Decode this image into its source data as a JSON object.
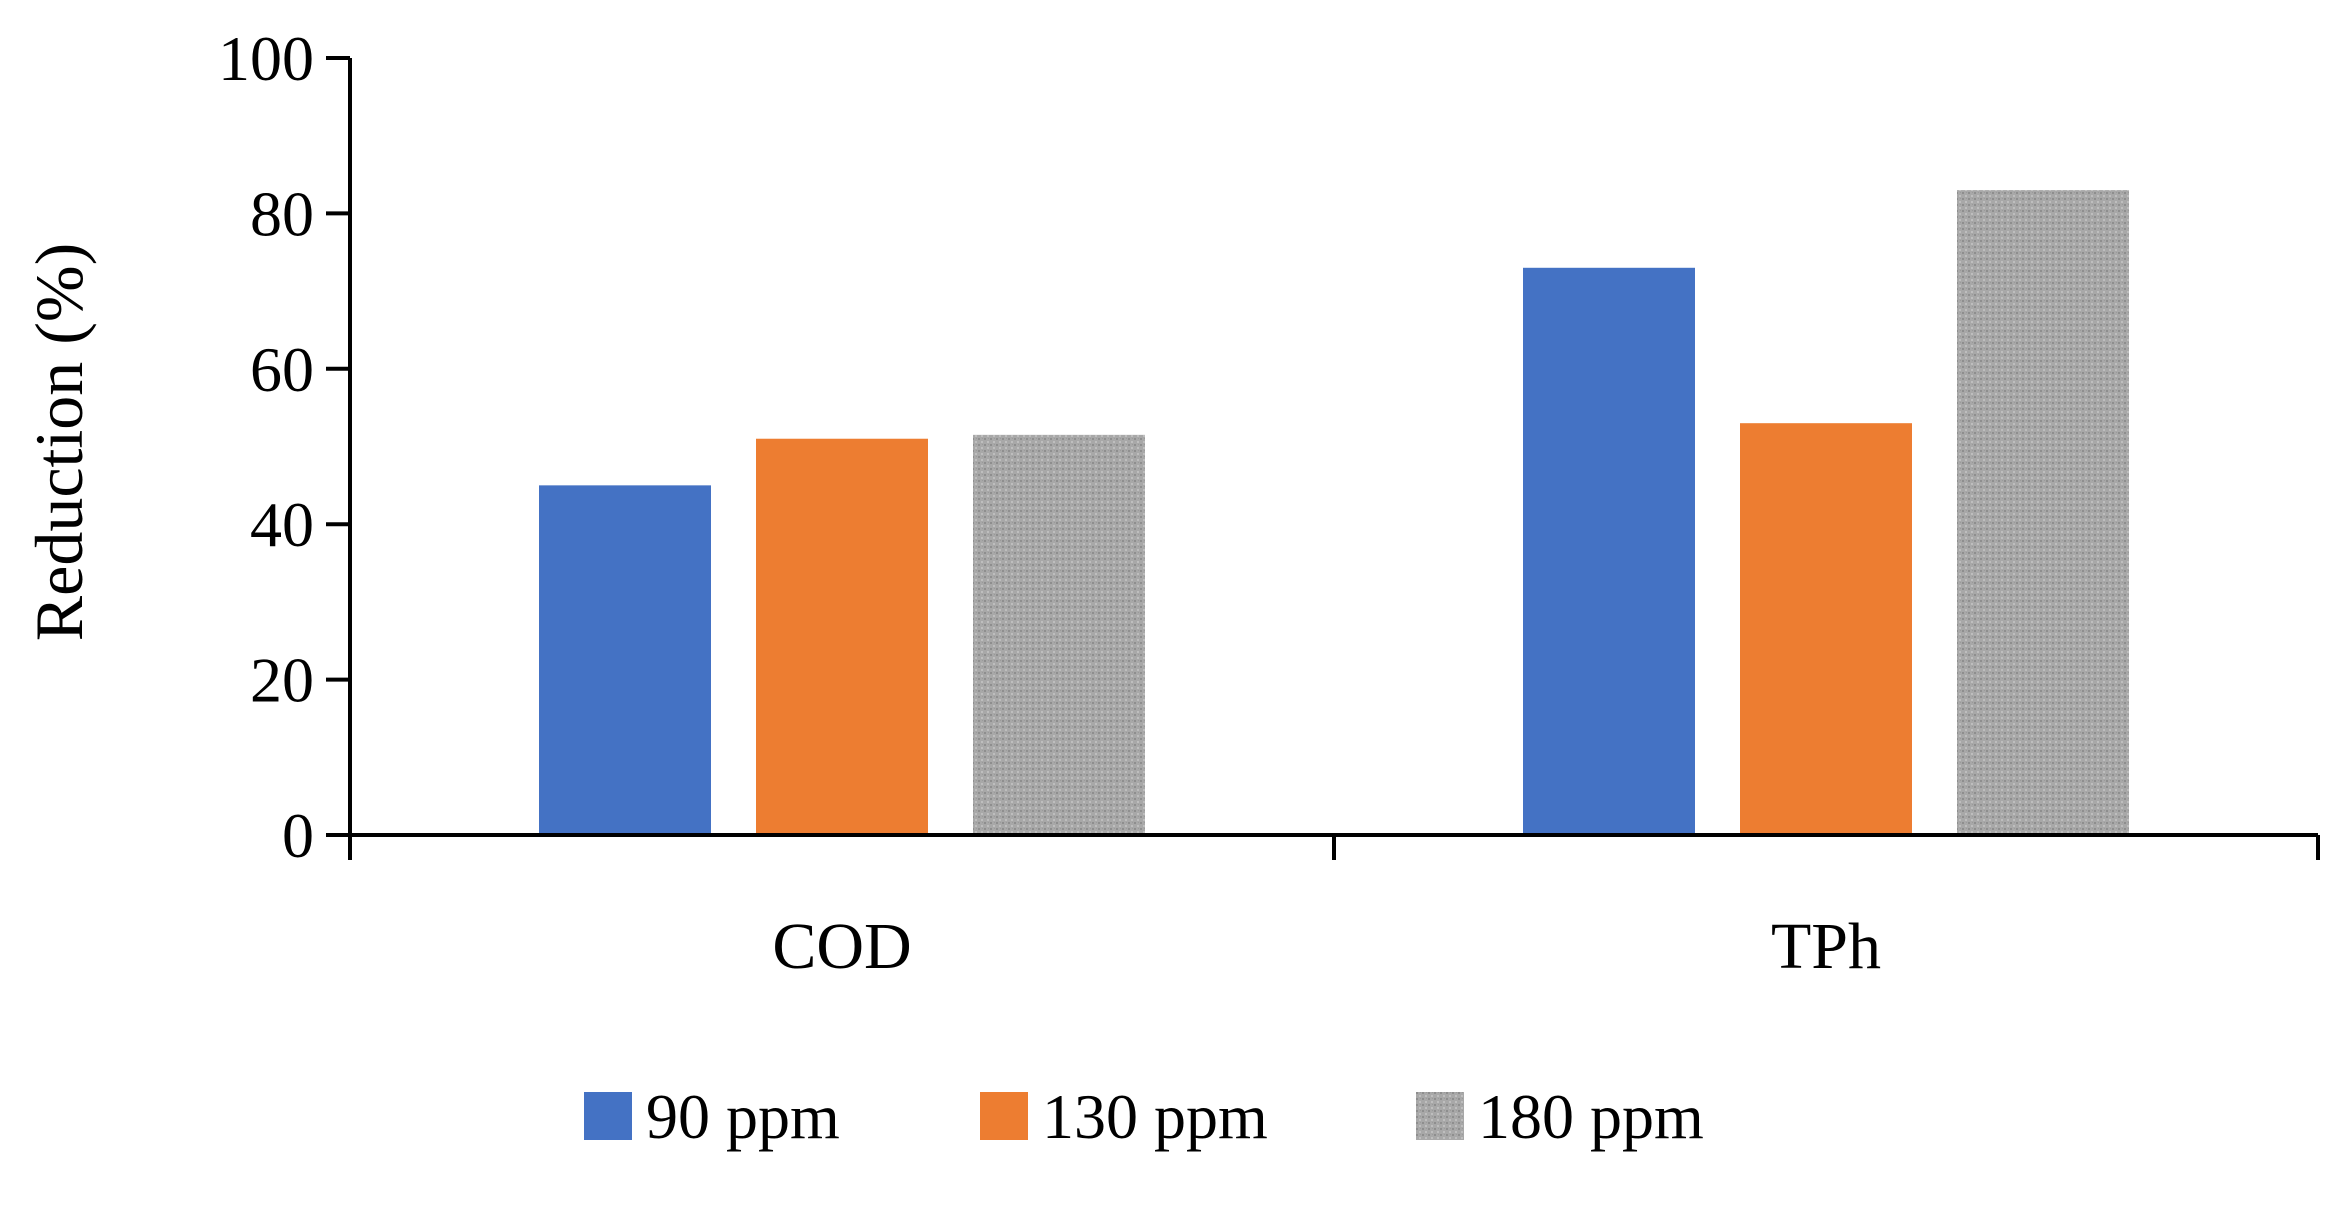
{
  "chart_data": {
    "type": "bar",
    "title": "",
    "xlabel": "",
    "ylabel": "Reduction (%)",
    "categories": [
      "COD",
      "TPh"
    ],
    "series": [
      {
        "name": "90 ppm",
        "values": [
          45,
          73
        ],
        "color": "#4472C4",
        "pattern": "solid"
      },
      {
        "name": "130 ppm",
        "values": [
          51,
          53
        ],
        "color": "#ED7D31",
        "pattern": "solid"
      },
      {
        "name": "180 ppm",
        "values": [
          51.5,
          83
        ],
        "color": "#A5A5A5",
        "pattern": "stipple"
      }
    ],
    "ylim": [
      0,
      100
    ],
    "yticks": [
      "0",
      "20",
      "40",
      "60",
      "80",
      "100"
    ],
    "grid": false,
    "legend_position": "bottom"
  }
}
